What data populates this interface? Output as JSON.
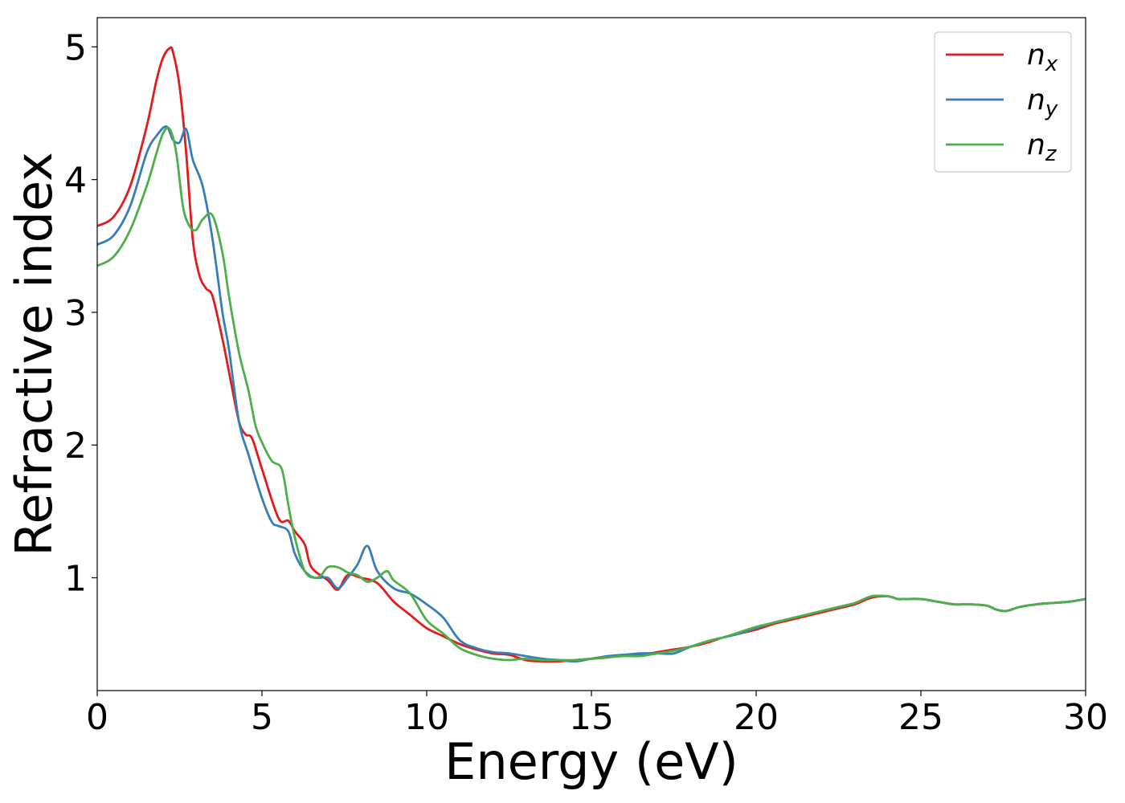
{
  "chart_data": {
    "type": "line",
    "title": "",
    "xlabel": "Energy (eV)",
    "ylabel": "Refractive index",
    "xlim": [
      0,
      30
    ],
    "ylim": [
      0.15,
      5.22
    ],
    "xticks": [
      0,
      5,
      10,
      15,
      20,
      25,
      30
    ],
    "xtick_labels": [
      "0",
      "5",
      "10",
      "15",
      "20",
      "25",
      "30"
    ],
    "yticks": [
      1,
      2,
      3,
      4,
      5
    ],
    "ytick_labels": [
      "1",
      "2",
      "3",
      "4",
      "5"
    ],
    "grid": false,
    "legend_position": "top-right",
    "series": [
      {
        "name": "n",
        "subscript": "x",
        "color": "#e41a1c",
        "x": [
          0,
          0.5,
          1.0,
          1.5,
          1.8,
          2.0,
          2.2,
          2.3,
          2.5,
          2.7,
          2.9,
          3.1,
          3.3,
          3.5,
          3.8,
          4.0,
          4.3,
          4.5,
          4.7,
          5.0,
          5.5,
          5.8,
          6.0,
          6.3,
          6.5,
          7.0,
          7.3,
          7.6,
          8.0,
          8.5,
          9.0,
          9.5,
          10.0,
          10.5,
          11.0,
          11.5,
          12.0,
          12.5,
          13.0,
          13.5,
          14.0,
          14.5,
          15.0,
          15.5,
          16.0,
          16.5,
          17.0,
          17.5,
          18.0,
          18.5,
          19.0,
          19.5,
          20.0,
          20.5,
          21.0,
          21.5,
          22.0,
          22.5,
          23.0,
          23.5,
          24.0,
          24.3,
          24.5,
          25.0,
          25.5,
          26.0,
          26.5,
          27.0,
          27.3,
          27.6,
          28.0,
          28.5,
          29.0,
          29.5,
          30.0
        ],
        "y": [
          3.65,
          3.72,
          3.95,
          4.4,
          4.75,
          4.92,
          4.99,
          4.96,
          4.7,
          4.2,
          3.55,
          3.28,
          3.18,
          3.12,
          2.8,
          2.55,
          2.18,
          2.08,
          2.05,
          1.82,
          1.45,
          1.43,
          1.35,
          1.25,
          1.08,
          0.98,
          0.91,
          1.02,
          1.0,
          0.96,
          0.82,
          0.72,
          0.62,
          0.56,
          0.5,
          0.46,
          0.43,
          0.42,
          0.38,
          0.37,
          0.37,
          0.38,
          0.39,
          0.4,
          0.42,
          0.42,
          0.44,
          0.46,
          0.48,
          0.51,
          0.55,
          0.58,
          0.61,
          0.65,
          0.68,
          0.71,
          0.74,
          0.77,
          0.8,
          0.85,
          0.86,
          0.84,
          0.84,
          0.84,
          0.82,
          0.8,
          0.8,
          0.79,
          0.76,
          0.75,
          0.78,
          0.8,
          0.81,
          0.82,
          0.84
        ]
      },
      {
        "name": "n",
        "subscript": "y",
        "color": "#377eb8",
        "x": [
          0,
          0.5,
          1.0,
          1.5,
          1.8,
          2.1,
          2.3,
          2.5,
          2.7,
          2.9,
          3.2,
          3.5,
          3.8,
          4.0,
          4.3,
          4.6,
          5.0,
          5.3,
          5.5,
          5.8,
          6.0,
          6.3,
          6.6,
          7.0,
          7.3,
          7.6,
          7.9,
          8.2,
          8.5,
          9.0,
          9.5,
          10.0,
          10.5,
          11.0,
          11.5,
          12.0,
          12.5,
          13.0,
          13.5,
          14.0,
          14.5,
          15.0,
          15.5,
          16.0,
          16.5,
          17.0,
          17.5,
          18.0,
          18.5,
          19.0,
          19.5,
          20.0,
          20.5,
          21.0,
          21.5,
          22.0,
          22.5,
          23.0,
          23.5,
          24.0,
          24.3,
          24.5,
          25.0,
          25.5,
          26.0,
          26.5,
          27.0,
          27.3,
          27.6,
          28.0,
          28.5,
          29.0,
          29.5,
          30.0
        ],
        "y": [
          3.51,
          3.58,
          3.8,
          4.2,
          4.33,
          4.4,
          4.3,
          4.28,
          4.38,
          4.15,
          3.95,
          3.55,
          3.0,
          2.72,
          2.18,
          1.92,
          1.6,
          1.42,
          1.39,
          1.35,
          1.18,
          1.05,
          1.0,
          1.0,
          0.92,
          1.0,
          1.1,
          1.24,
          1.05,
          0.92,
          0.88,
          0.8,
          0.7,
          0.53,
          0.47,
          0.44,
          0.43,
          0.41,
          0.39,
          0.38,
          0.37,
          0.39,
          0.41,
          0.42,
          0.43,
          0.43,
          0.43,
          0.48,
          0.52,
          0.55,
          0.58,
          0.62,
          0.66,
          0.69,
          0.72,
          0.75,
          0.78,
          0.81,
          0.86,
          0.86,
          0.84,
          0.84,
          0.84,
          0.82,
          0.8,
          0.8,
          0.79,
          0.76,
          0.75,
          0.78,
          0.8,
          0.81,
          0.82,
          0.84
        ]
      },
      {
        "name": "n",
        "subscript": "z",
        "color": "#4daf4a",
        "x": [
          0,
          0.5,
          1.0,
          1.5,
          1.8,
          2.0,
          2.2,
          2.4,
          2.6,
          2.8,
          3.0,
          3.2,
          3.5,
          3.8,
          4.0,
          4.3,
          4.6,
          4.8,
          5.0,
          5.3,
          5.6,
          5.8,
          6.0,
          6.3,
          6.6,
          6.8,
          7.0,
          7.3,
          7.6,
          7.9,
          8.2,
          8.5,
          8.8,
          9.0,
          9.5,
          10.0,
          10.5,
          11.0,
          11.5,
          12.0,
          12.5,
          13.0,
          13.5,
          14.0,
          14.5,
          15.0,
          15.5,
          16.0,
          16.5,
          17.0,
          17.5,
          18.0,
          18.5,
          19.0,
          19.5,
          20.0,
          20.5,
          21.0,
          21.5,
          22.0,
          22.5,
          23.0,
          23.5,
          24.0,
          24.3,
          24.5,
          25.0,
          25.5,
          26.0,
          26.5,
          27.0,
          27.3,
          27.6,
          28.0,
          28.5,
          29.0,
          29.5,
          30.0
        ],
        "y": [
          3.35,
          3.42,
          3.62,
          3.95,
          4.2,
          4.35,
          4.38,
          4.2,
          3.8,
          3.65,
          3.62,
          3.7,
          3.73,
          3.45,
          3.12,
          2.7,
          2.4,
          2.15,
          2.02,
          1.88,
          1.82,
          1.55,
          1.3,
          1.05,
          1.0,
          1.02,
          1.08,
          1.08,
          1.04,
          1.02,
          0.97,
          1.0,
          1.05,
          0.98,
          0.88,
          0.68,
          0.58,
          0.47,
          0.42,
          0.39,
          0.38,
          0.39,
          0.38,
          0.38,
          0.38,
          0.39,
          0.4,
          0.41,
          0.41,
          0.43,
          0.45,
          0.48,
          0.52,
          0.55,
          0.59,
          0.63,
          0.66,
          0.69,
          0.72,
          0.75,
          0.78,
          0.81,
          0.86,
          0.86,
          0.84,
          0.84,
          0.84,
          0.82,
          0.8,
          0.8,
          0.79,
          0.76,
          0.75,
          0.78,
          0.8,
          0.81,
          0.82,
          0.84
        ]
      }
    ]
  }
}
